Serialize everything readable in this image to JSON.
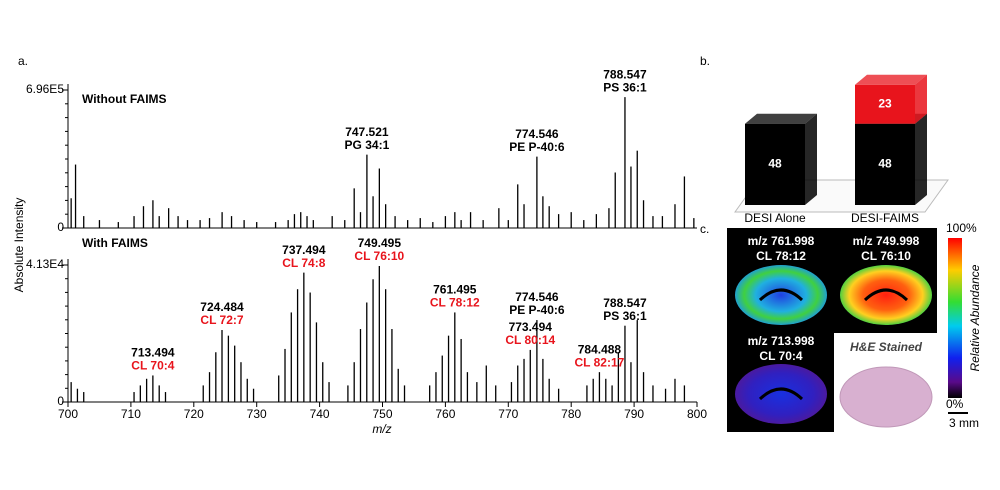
{
  "panel_labels": [
    "a.",
    "b.",
    "c."
  ],
  "chart_data": [
    {
      "type": "spectrum",
      "title": "Without FAIMS",
      "ylabel": "Absolute Intensity",
      "xlim": [
        700,
        800
      ],
      "ylim": [
        0,
        696000
      ],
      "yticks": [
        0,
        {
          "value": 696000,
          "label": "6.96E5"
        }
      ],
      "x": [
        700.5,
        701.2,
        702.5,
        705,
        708,
        710.5,
        712,
        713.5,
        714.5,
        716,
        717.5,
        719,
        721,
        722.5,
        724.5,
        726,
        728,
        730,
        733,
        735,
        736,
        737,
        738,
        739,
        742,
        744,
        745.5,
        746.5,
        747.521,
        748.5,
        749.5,
        750.5,
        752,
        754,
        756,
        758,
        760,
        761.5,
        762.5,
        764,
        766,
        768.5,
        770,
        771.5,
        772.5,
        774.546,
        775.5,
        776.5,
        778,
        780,
        782,
        784,
        786,
        787,
        788.547,
        789.5,
        790.5,
        791.5,
        793,
        794.5,
        796.5,
        798,
        799.5
      ],
      "values": [
        150000,
        320000,
        60000,
        40000,
        30000,
        60000,
        110000,
        140000,
        60000,
        100000,
        60000,
        40000,
        40000,
        50000,
        80000,
        60000,
        40000,
        30000,
        30000,
        40000,
        70000,
        80000,
        60000,
        40000,
        60000,
        40000,
        200000,
        80000,
        370000,
        160000,
        300000,
        120000,
        60000,
        40000,
        50000,
        30000,
        60000,
        80000,
        40000,
        80000,
        40000,
        100000,
        40000,
        220000,
        120000,
        360000,
        160000,
        110000,
        70000,
        80000,
        40000,
        70000,
        100000,
        280000,
        660000,
        310000,
        390000,
        140000,
        60000,
        60000,
        120000,
        260000,
        50000
      ],
      "color": "#000000",
      "annotations": [
        {
          "x": 747.521,
          "note": "PG 34:1",
          "note_color": "#000000"
        },
        {
          "x": 774.546,
          "note": "PE P-40:6",
          "note_color": "#000000"
        },
        {
          "x": 788.547,
          "note": "PS 36:1",
          "note_color": "#000000"
        }
      ]
    },
    {
      "type": "spectrum",
      "title": "With FAIMS",
      "xlabel": "m/z",
      "xlim": [
        700,
        800
      ],
      "ylim": [
        0,
        41300
      ],
      "xticks": [
        700,
        710,
        720,
        730,
        740,
        750,
        760,
        770,
        780,
        790,
        800
      ],
      "yticks": [
        0,
        {
          "value": 41300,
          "label": "4.13E4"
        }
      ],
      "x": [
        700.5,
        701.5,
        702.5,
        710.5,
        711.5,
        712.5,
        713.494,
        714.5,
        715.5,
        721.5,
        722.5,
        723.5,
        724.484,
        725.5,
        726.5,
        727.5,
        728.5,
        729.5,
        733.5,
        734.5,
        735.5,
        736.5,
        737.494,
        738.5,
        739.5,
        740.5,
        741.5,
        744.5,
        745.5,
        746.5,
        747.5,
        748.5,
        749.495,
        750.5,
        751.5,
        752.5,
        753.5,
        757.5,
        758.5,
        759.5,
        760.5,
        761.495,
        762.5,
        763.5,
        765,
        766.5,
        768,
        770.5,
        771.5,
        772.5,
        773.494,
        774.546,
        775.5,
        776.5,
        778,
        782.5,
        783.5,
        784.488,
        785.5,
        786.5,
        787.5,
        788.547,
        789.5,
        790.5,
        791.5,
        793,
        795,
        796.5,
        798
      ],
      "values": [
        6000,
        4000,
        3000,
        3000,
        5000,
        7000,
        8000,
        5000,
        3000,
        5000,
        9000,
        15000,
        21700,
        20000,
        17000,
        12000,
        7000,
        4000,
        8000,
        16000,
        27000,
        34000,
        39000,
        33000,
        24000,
        12000,
        6000,
        5000,
        12000,
        22000,
        30000,
        37000,
        41000,
        34000,
        22000,
        10000,
        5000,
        5000,
        9000,
        14000,
        20000,
        27000,
        19000,
        9000,
        6000,
        11000,
        5000,
        6000,
        11000,
        13000,
        15700,
        24700,
        13000,
        7000,
        4000,
        5000,
        7000,
        9000,
        7000,
        5000,
        15000,
        23000,
        12000,
        24700,
        9000,
        5000,
        4000,
        7000,
        5000
      ],
      "color": "#000000",
      "annotations": [
        {
          "x": 713.494,
          "note": "CL 70:4",
          "note_color": "#e8141c"
        },
        {
          "x": 724.484,
          "note": "CL 72:7",
          "note_color": "#e8141c"
        },
        {
          "x": 737.494,
          "note": "CL 74:8",
          "note_color": "#e8141c"
        },
        {
          "x": 749.495,
          "note": "CL 76:10",
          "note_color": "#e8141c"
        },
        {
          "x": 761.495,
          "note": "CL 78:12",
          "note_color": "#e8141c"
        },
        {
          "x": 773.494,
          "note": "CL 80:14",
          "note_color": "#e8141c"
        },
        {
          "x": 774.546,
          "note": "PE P-40:6",
          "note_color": "#000000"
        },
        {
          "x": 784.488,
          "note": "CL 82:17",
          "note_color": "#e8141c"
        },
        {
          "x": 788.547,
          "note": "PS 36:1",
          "note_color": "#000000"
        }
      ]
    },
    {
      "type": "stacked_bar",
      "categories": [
        "DESI Alone",
        "DESI-FAIMS"
      ],
      "ylim": [
        0,
        75
      ],
      "series": [
        {
          "color": "#000000",
          "values": [
            48,
            48
          ]
        },
        {
          "color": "#e8141c",
          "values": [
            null,
            23
          ]
        }
      ]
    }
  ],
  "panel_c": {
    "tiles": [
      {
        "title": "m/z 761.998",
        "subtitle": "CL 78:12"
      },
      {
        "title": "m/z 749.998",
        "subtitle": "CL 76:10"
      },
      {
        "title": "m/z 713.998",
        "subtitle": "CL 70:4"
      },
      {
        "title": "H&E Stained"
      }
    ],
    "colorbar": {
      "max_label": "100%",
      "min_label": "0%",
      "label": "Relative Abundance"
    },
    "scale_bar": "3 mm"
  }
}
